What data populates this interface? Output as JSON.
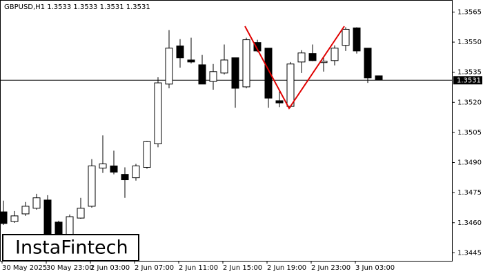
{
  "chart_data": {
    "type": "candlestick",
    "title": "GBPUSD,H1  1.3533 1.3533 1.3531 1.3531",
    "categories": [
      "30 May 2025",
      null,
      null,
      null,
      "30 May 23:00",
      null,
      null,
      null,
      "2 Jun 03:00",
      null,
      null,
      null,
      "2 Jun 07:00",
      null,
      null,
      null,
      "2 Jun 11:00",
      null,
      null,
      null,
      "2 Jun 15:00",
      null,
      null,
      null,
      "2 Jun 19:00",
      null,
      null,
      null,
      "2 Jun 23:00",
      null,
      null,
      null,
      "3 Jun 03:00",
      null,
      null
    ],
    "open": [
      1.34654,
      1.34606,
      1.34644,
      1.34672,
      1.34713,
      1.34603,
      1.3452,
      1.34623,
      1.34682,
      1.34872,
      1.34883,
      1.34841,
      1.34824,
      1.34876,
      1.34993,
      1.35291,
      1.35481,
      1.35411,
      1.35387,
      1.35304,
      1.35346,
      1.35422,
      1.35277,
      1.35498,
      1.3547,
      1.35208,
      1.3518,
      1.35401,
      1.35443,
      1.35398,
      1.35408,
      1.35484,
      1.35571,
      1.3547,
      1.35332
    ],
    "high": [
      1.3471,
      1.34658,
      1.34703,
      1.34744,
      1.34737,
      1.3461,
      1.34641,
      1.34724,
      1.34917,
      1.35035,
      1.34959,
      1.34876,
      1.34893,
      1.35007,
      1.35325,
      1.3556,
      1.35515,
      1.35522,
      1.35436,
      1.35391,
      1.35488,
      1.35422,
      1.35522,
      1.35512,
      1.3547,
      1.35263,
      1.35401,
      1.3546,
      1.35488,
      1.35429,
      1.35484,
      1.35574,
      1.35574,
      1.3547,
      1.35332
    ],
    "low": [
      1.34589,
      1.34599,
      1.34634,
      1.34665,
      1.34502,
      1.34502,
      1.3452,
      1.3462,
      1.34675,
      1.34848,
      1.34841,
      1.34724,
      1.3481,
      1.34869,
      1.34976,
      1.3527,
      1.35373,
      1.35394,
      1.35291,
      1.35263,
      1.35339,
      1.35173,
      1.3527,
      1.3545,
      1.35173,
      1.35176,
      1.35173,
      1.35346,
      1.35405,
      1.35353,
      1.35384,
      1.35456,
      1.35443,
      1.35297,
      1.35311
    ],
    "close": [
      1.34596,
      1.34634,
      1.34682,
      1.34724,
      1.3452,
      1.3452,
      1.3463,
      1.34672,
      1.34883,
      1.34893,
      1.34852,
      1.34814,
      1.34883,
      1.35004,
      1.35297,
      1.3547,
      1.35422,
      1.35401,
      1.35291,
      1.35353,
      1.35411,
      1.3527,
      1.35512,
      1.35456,
      1.35221,
      1.35197,
      1.35391,
      1.35446,
      1.35408,
      1.35405,
      1.3547,
      1.35564,
      1.35456,
      1.35322,
      1.35311
    ],
    "up_color": "#ffffff",
    "down_color": "#000000",
    "ylim": [
      1.3441,
      1.3571
    ],
    "yticks": [
      1.3565,
      {
        "value": 1.355,
        "label": "1.3550"
      },
      1.3535,
      {
        "value": 1.352,
        "label": "1.3520"
      },
      1.3505,
      {
        "value": 1.349,
        "label": "1.3490"
      },
      1.3475,
      {
        "value": 1.346,
        "label": "1.3460"
      },
      1.3445
    ],
    "current_price": 1.3531,
    "grid": false
  },
  "logo": "InstaFintech"
}
